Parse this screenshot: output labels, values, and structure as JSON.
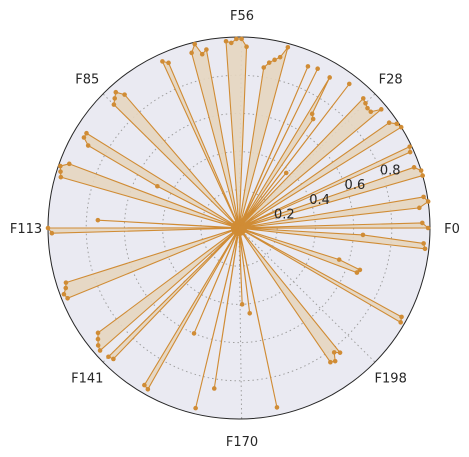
{
  "chart_data": {
    "type": "radar",
    "title": "",
    "angular_ticks": [
      {
        "label": "F0",
        "index": 0
      },
      {
        "label": "F28",
        "index": 28
      },
      {
        "label": "F56",
        "index": 56
      },
      {
        "label": "F85",
        "index": 85
      },
      {
        "label": "F113",
        "index": 113
      },
      {
        "label": "F141",
        "index": 141
      },
      {
        "label": "F170",
        "index": 170
      },
      {
        "label": "F198",
        "index": 198
      }
    ],
    "n_features": 226,
    "radial_ticks": [
      "0.2",
      "0.4",
      "0.6",
      "0.8"
    ],
    "radial_tick_values": [
      0.2,
      0.4,
      0.6,
      0.8
    ],
    "rlim": [
      0,
      1.0
    ],
    "grid": true,
    "series": [
      {
        "color": "#d08c35",
        "fill_color": "#e6d6c0",
        "points": [
          [
            0,
            0.99
          ],
          [
            1,
            0.96
          ],
          [
            2,
            0.02
          ],
          [
            3,
            0.01
          ],
          [
            4,
            0.95
          ],
          [
            5,
            1.0
          ],
          [
            6,
            0.98
          ],
          [
            7,
            0.02
          ],
          [
            8,
            0.01
          ],
          [
            9,
            0.03
          ],
          [
            10,
            1.0
          ],
          [
            11,
            1.0
          ],
          [
            12,
            0.97
          ],
          [
            13,
            0.03
          ],
          [
            14,
            0.02
          ],
          [
            15,
            0.98
          ],
          [
            16,
            0.99
          ],
          [
            17,
            0.02
          ],
          [
            18,
            0.03
          ],
          [
            19,
            0.02
          ],
          [
            20,
            1.0
          ],
          [
            21,
            0.99
          ],
          [
            22,
            0.96
          ],
          [
            23,
            0.03
          ],
          [
            24,
            0.02
          ],
          [
            25,
            0.97
          ],
          [
            26,
            0.92
          ],
          [
            27,
            0.92
          ],
          [
            28,
            0.93
          ],
          [
            29,
            0.94
          ],
          [
            30,
            0.02
          ],
          [
            31,
            0.38
          ],
          [
            32,
            0.02
          ],
          [
            33,
            0.95
          ],
          [
            34,
            0.02
          ],
          [
            35,
            0.69
          ],
          [
            36,
            0.71
          ],
          [
            37,
            0.92
          ],
          [
            38,
            0.02
          ],
          [
            39,
            0.03
          ],
          [
            40,
            0.93
          ],
          [
            41,
            0.02
          ],
          [
            42,
            0.92
          ],
          [
            43,
            0.04
          ],
          [
            44,
            0.02
          ],
          [
            45,
            0.03
          ],
          [
            46,
            0.01
          ],
          [
            47,
            0.98
          ],
          [
            48,
            0.92
          ],
          [
            49,
            0.9
          ],
          [
            50,
            0.88
          ],
          [
            51,
            0.85
          ],
          [
            52,
            0.02
          ],
          [
            53,
            0.01
          ],
          [
            54,
            0.02
          ],
          [
            55,
            0.95
          ],
          [
            56,
            0.99
          ],
          [
            57,
            0.99
          ],
          [
            58,
            0.97
          ],
          [
            59,
            0.98
          ],
          [
            60,
            0.02
          ],
          [
            61,
            0.01
          ],
          [
            62,
            0.02
          ],
          [
            63,
            0.95
          ],
          [
            64,
            0.93
          ],
          [
            65,
            0.99
          ],
          [
            66,
            0.95
          ],
          [
            67,
            0.02
          ],
          [
            68,
            0.01
          ],
          [
            69,
            0.03
          ],
          [
            70,
            0.02
          ],
          [
            71,
            0.94
          ],
          [
            72,
            0.96
          ],
          [
            73,
            0.01
          ],
          [
            74,
            0.02
          ],
          [
            75,
            0.03
          ],
          [
            76,
            0.02
          ],
          [
            77,
            0.01
          ],
          [
            78,
            0.02
          ],
          [
            79,
            0.03
          ],
          [
            80,
            0.01
          ],
          [
            81,
            0.02
          ],
          [
            82,
            0.92
          ],
          [
            83,
            0.96
          ],
          [
            84,
            0.94
          ],
          [
            85,
            0.92
          ],
          [
            86,
            0.02
          ],
          [
            87,
            0.01
          ],
          [
            88,
            0.02
          ],
          [
            89,
            0.03
          ],
          [
            90,
            0.02
          ],
          [
            91,
            0.01
          ],
          [
            92,
            0.02
          ],
          [
            93,
            0.94
          ],
          [
            94,
            0.94
          ],
          [
            95,
            0.9
          ],
          [
            96,
            0.48
          ],
          [
            97,
            0.02
          ],
          [
            98,
            0.01
          ],
          [
            99,
            0.02
          ],
          [
            100,
            0.95
          ],
          [
            101,
            0.99
          ],
          [
            102,
            0.98
          ],
          [
            103,
            0.97
          ],
          [
            104,
            0.02
          ],
          [
            105,
            0.01
          ],
          [
            106,
            0.02
          ],
          [
            107,
            0.03
          ],
          [
            108,
            0.02
          ],
          [
            109,
            0.01
          ],
          [
            110,
            0.02
          ],
          [
            111,
            0.74
          ],
          [
            112,
            0.02
          ],
          [
            113,
            1.0
          ],
          [
            114,
            0.98
          ],
          [
            115,
            0.02
          ],
          [
            116,
            0.01
          ],
          [
            117,
            0.02
          ],
          [
            118,
            0.03
          ],
          [
            119,
            0.02
          ],
          [
            120,
            0.01
          ],
          [
            121,
            0.02
          ],
          [
            122,
            0.03
          ],
          [
            123,
            0.02
          ],
          [
            124,
            0.95
          ],
          [
            125,
            0.96
          ],
          [
            126,
            0.98
          ],
          [
            127,
            0.97
          ],
          [
            128,
            0.02
          ],
          [
            129,
            0.01
          ],
          [
            130,
            0.02
          ],
          [
            131,
            0.03
          ],
          [
            132,
            0.02
          ],
          [
            133,
            0.01
          ],
          [
            134,
            0.02
          ],
          [
            135,
            0.03
          ],
          [
            136,
            0.92
          ],
          [
            137,
            0.94
          ],
          [
            138,
            0.96
          ],
          [
            139,
            0.97
          ],
          [
            140,
            0.02
          ],
          [
            141,
            0.96
          ],
          [
            142,
            0.95
          ],
          [
            143,
            0.02
          ],
          [
            144,
            0.01
          ],
          [
            145,
            0.02
          ],
          [
            146,
            0.03
          ],
          [
            147,
            0.02
          ],
          [
            148,
            0.01
          ],
          [
            149,
            0.02
          ],
          [
            150,
            0.96
          ],
          [
            151,
            0.97
          ],
          [
            152,
            0.02
          ],
          [
            153,
            0.01
          ],
          [
            154,
            0.02
          ],
          [
            155,
            0.6
          ],
          [
            156,
            0.02
          ],
          [
            157,
            0.03
          ],
          [
            158,
            0.02
          ],
          [
            159,
            0.01
          ],
          [
            160,
            0.02
          ],
          [
            161,
            0.97
          ],
          [
            162,
            0.01
          ],
          [
            163,
            0.02
          ],
          [
            164,
            0.85
          ],
          [
            165,
            0.02
          ],
          [
            166,
            0.03
          ],
          [
            167,
            0.02
          ],
          [
            168,
            0.01
          ],
          [
            169,
            0.02
          ],
          [
            170,
            0.01
          ],
          [
            171,
            0.4
          ],
          [
            172,
            0.02
          ],
          [
            173,
            0.03
          ],
          [
            174,
            0.45
          ],
          [
            175,
            0.01
          ],
          [
            176,
            0.02
          ],
          [
            177,
            0.96
          ],
          [
            178,
            0.02
          ],
          [
            179,
            0.01
          ],
          [
            180,
            0.02
          ],
          [
            181,
            0.03
          ],
          [
            182,
            0.02
          ],
          [
            183,
            0.01
          ],
          [
            184,
            0.02
          ],
          [
            185,
            0.03
          ],
          [
            186,
            0.02
          ],
          [
            187,
            0.01
          ],
          [
            188,
            0.02
          ],
          [
            189,
            0.03
          ],
          [
            190,
            0.02
          ],
          [
            191,
            0.85
          ],
          [
            192,
            0.86
          ],
          [
            193,
            0.82
          ],
          [
            194,
            0.84
          ],
          [
            195,
            0.02
          ],
          [
            196,
            0.01
          ],
          [
            197,
            0.02
          ],
          [
            198,
            0.03
          ],
          [
            199,
            0.02
          ],
          [
            200,
            0.01
          ],
          [
            201,
            0.02
          ],
          [
            202,
            0.03
          ],
          [
            203,
            0.02
          ],
          [
            204,
            0.01
          ],
          [
            205,
            0.02
          ],
          [
            206,
            0.03
          ],
          [
            207,
            0.98
          ],
          [
            208,
            0.97
          ],
          [
            209,
            0.02
          ],
          [
            210,
            0.01
          ],
          [
            211,
            0.02
          ],
          [
            212,
            0.03
          ],
          [
            213,
            0.66
          ],
          [
            214,
            0.67
          ],
          [
            215,
            0.55
          ],
          [
            216,
            0.02
          ],
          [
            217,
            0.01
          ],
          [
            218,
            0.02
          ],
          [
            219,
            0.03
          ],
          [
            220,
            0.02
          ],
          [
            221,
            0.01
          ],
          [
            222,
            0.98
          ],
          [
            223,
            0.97
          ],
          [
            224,
            0.65
          ],
          [
            225,
            0.02
          ]
        ]
      }
    ]
  }
}
